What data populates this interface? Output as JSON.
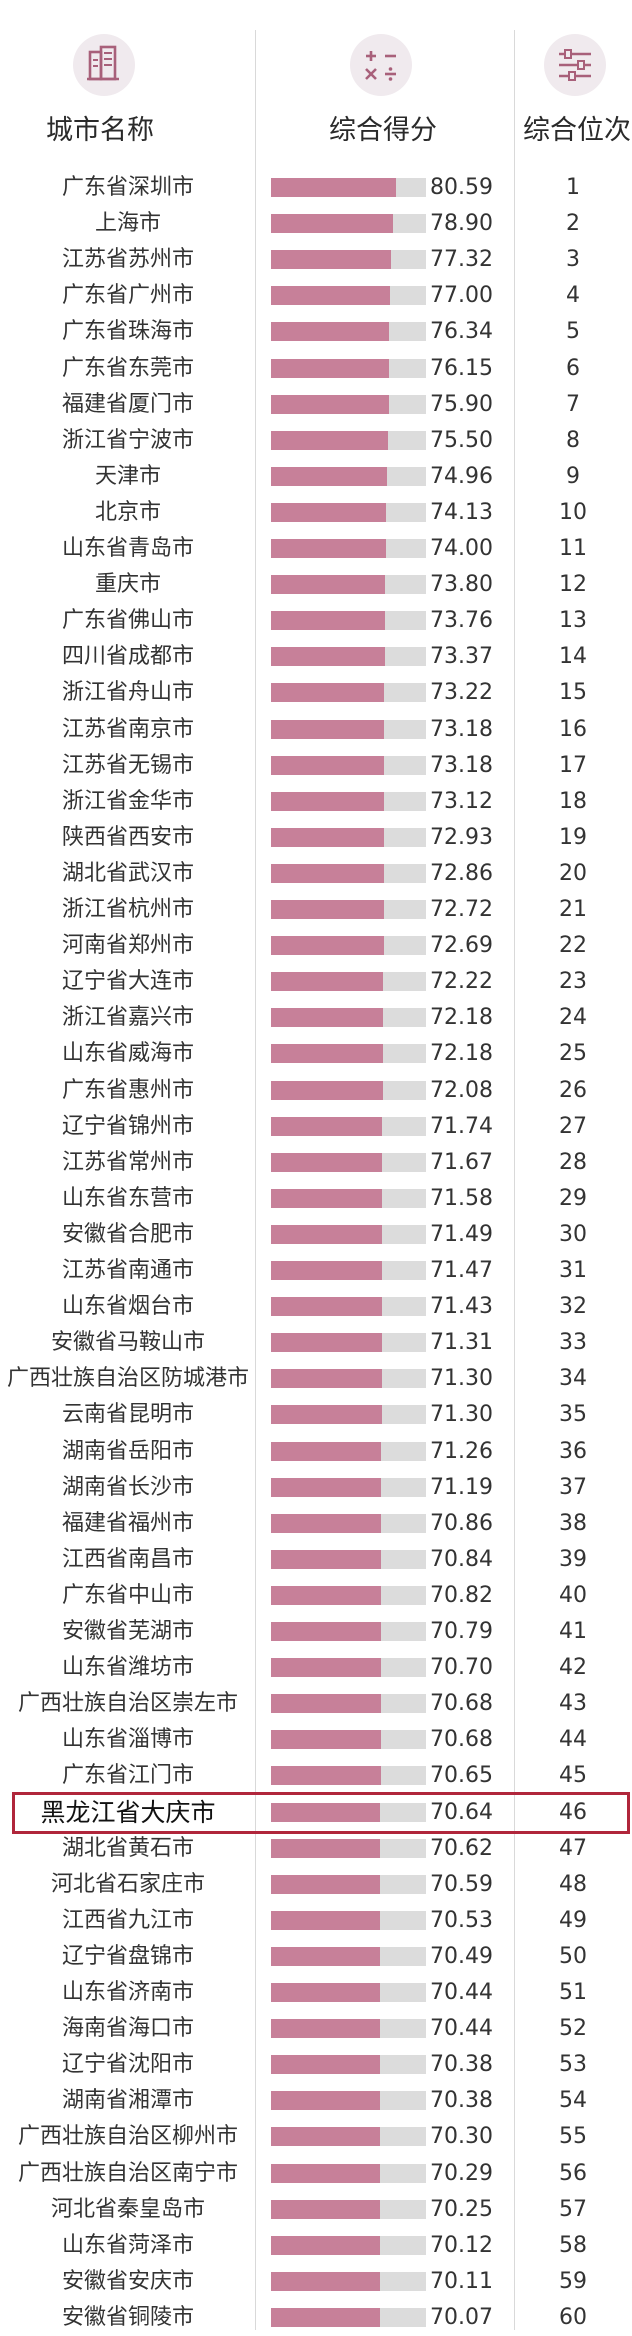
{
  "header": {
    "city_label": "城市名称",
    "score_label": "综合得分",
    "rank_label": "综合位次",
    "city_icon": "city-buildings-icon",
    "score_icon": "calculator-icon",
    "rank_icon": "sliders-icon"
  },
  "colors": {
    "bar": "#c78099",
    "track": "#dcdcdc",
    "highlight": "#b0263b",
    "icon_bg": "#f0eaee",
    "icon_fg": "#a8607a"
  },
  "highlight_rank": 46,
  "chart_data": {
    "type": "bar",
    "title": "",
    "xlabel": "",
    "ylabel": "",
    "ylim": [
      0,
      100
    ],
    "columns": [
      "城市名称",
      "综合得分",
      "综合位次"
    ],
    "categories": [
      "广东省深圳市",
      "上海市",
      "江苏省苏州市",
      "广东省广州市",
      "广东省珠海市",
      "广东省东莞市",
      "福建省厦门市",
      "浙江省宁波市",
      "天津市",
      "北京市",
      "山东省青岛市",
      "重庆市",
      "广东省佛山市",
      "四川省成都市",
      "浙江省舟山市",
      "江苏省南京市",
      "江苏省无锡市",
      "浙江省金华市",
      "陕西省西安市",
      "湖北省武汉市",
      "浙江省杭州市",
      "河南省郑州市",
      "辽宁省大连市",
      "浙江省嘉兴市",
      "山东省威海市",
      "广东省惠州市",
      "辽宁省锦州市",
      "江苏省常州市",
      "山东省东营市",
      "安徽省合肥市",
      "江苏省南通市",
      "山东省烟台市",
      "安徽省马鞍山市",
      "广西壮族自治区防城港市",
      "云南省昆明市",
      "湖南省岳阳市",
      "湖南省长沙市",
      "福建省福州市",
      "江西省南昌市",
      "广东省中山市",
      "安徽省芜湖市",
      "山东省潍坊市",
      "广西壮族自治区崇左市",
      "山东省淄博市",
      "广东省江门市",
      "黑龙江省大庆市",
      "湖北省黄石市",
      "河北省石家庄市",
      "江西省九江市",
      "辽宁省盘锦市",
      "山东省济南市",
      "海南省海口市",
      "辽宁省沈阳市",
      "湖南省湘潭市",
      "广西壮族自治区柳州市",
      "广西壮族自治区南宁市",
      "河北省秦皇岛市",
      "山东省菏泽市",
      "安徽省安庆市",
      "安徽省铜陵市"
    ],
    "values": [
      "80.59",
      "78.90",
      "77.32",
      "77.00",
      "76.34",
      "76.15",
      "75.90",
      "75.50",
      "74.96",
      "74.13",
      "74.00",
      "73.80",
      "73.76",
      "73.37",
      "73.22",
      "73.18",
      "73.18",
      "73.12",
      "72.93",
      "72.86",
      "72.72",
      "72.69",
      "72.22",
      "72.18",
      "72.18",
      "72.08",
      "71.74",
      "71.67",
      "71.58",
      "71.49",
      "71.47",
      "71.43",
      "71.31",
      "71.30",
      "71.30",
      "71.26",
      "71.19",
      "70.86",
      "70.84",
      "70.82",
      "70.79",
      "70.70",
      "70.68",
      "70.68",
      "70.65",
      "70.64",
      "70.62",
      "70.59",
      "70.53",
      "70.49",
      "70.44",
      "70.44",
      "70.38",
      "70.38",
      "70.30",
      "70.29",
      "70.25",
      "70.12",
      "70.11",
      "70.07"
    ],
    "ranks": [
      "1",
      "2",
      "3",
      "4",
      "5",
      "6",
      "7",
      "8",
      "9",
      "10",
      "11",
      "12",
      "13",
      "14",
      "15",
      "16",
      "17",
      "18",
      "19",
      "20",
      "21",
      "22",
      "23",
      "24",
      "25",
      "26",
      "27",
      "28",
      "29",
      "30",
      "31",
      "32",
      "33",
      "34",
      "35",
      "36",
      "37",
      "38",
      "39",
      "40",
      "41",
      "42",
      "43",
      "44",
      "45",
      "46",
      "47",
      "48",
      "49",
      "50",
      "51",
      "52",
      "53",
      "54",
      "55",
      "56",
      "57",
      "58",
      "59",
      "60"
    ]
  }
}
